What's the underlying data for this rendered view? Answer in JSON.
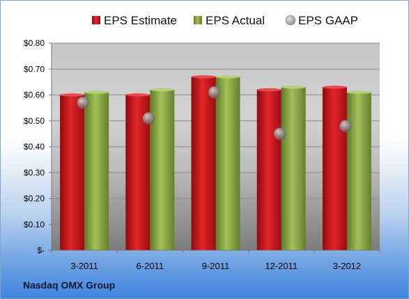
{
  "source_label": "Nasdaq OMX Group",
  "colors": {
    "estimate": "#d0161c",
    "actual": "#8aa83f",
    "gaap": "#a7a7a7"
  },
  "chart_data": {
    "type": "bar",
    "categories": [
      "3-2011",
      "6-2011",
      "9-2011",
      "12-2011",
      "3-2012"
    ],
    "series": [
      {
        "name": "EPS Estimate",
        "kind": "bar",
        "values": [
          0.6,
          0.6,
          0.67,
          0.62,
          0.63
        ]
      },
      {
        "name": "EPS Actual",
        "kind": "bar",
        "values": [
          0.61,
          0.62,
          0.67,
          0.63,
          0.61
        ]
      },
      {
        "name": "EPS GAAP",
        "kind": "marker",
        "values": [
          0.57,
          0.51,
          0.61,
          0.45,
          0.48
        ]
      }
    ],
    "yticks": [
      "$-",
      "$0.10",
      "$0.20",
      "$0.30",
      "$0.40",
      "$0.50",
      "$0.60",
      "$0.70",
      "$0.80"
    ],
    "ylim": [
      0,
      0.8
    ],
    "legend_position": "top",
    "grid": true
  }
}
